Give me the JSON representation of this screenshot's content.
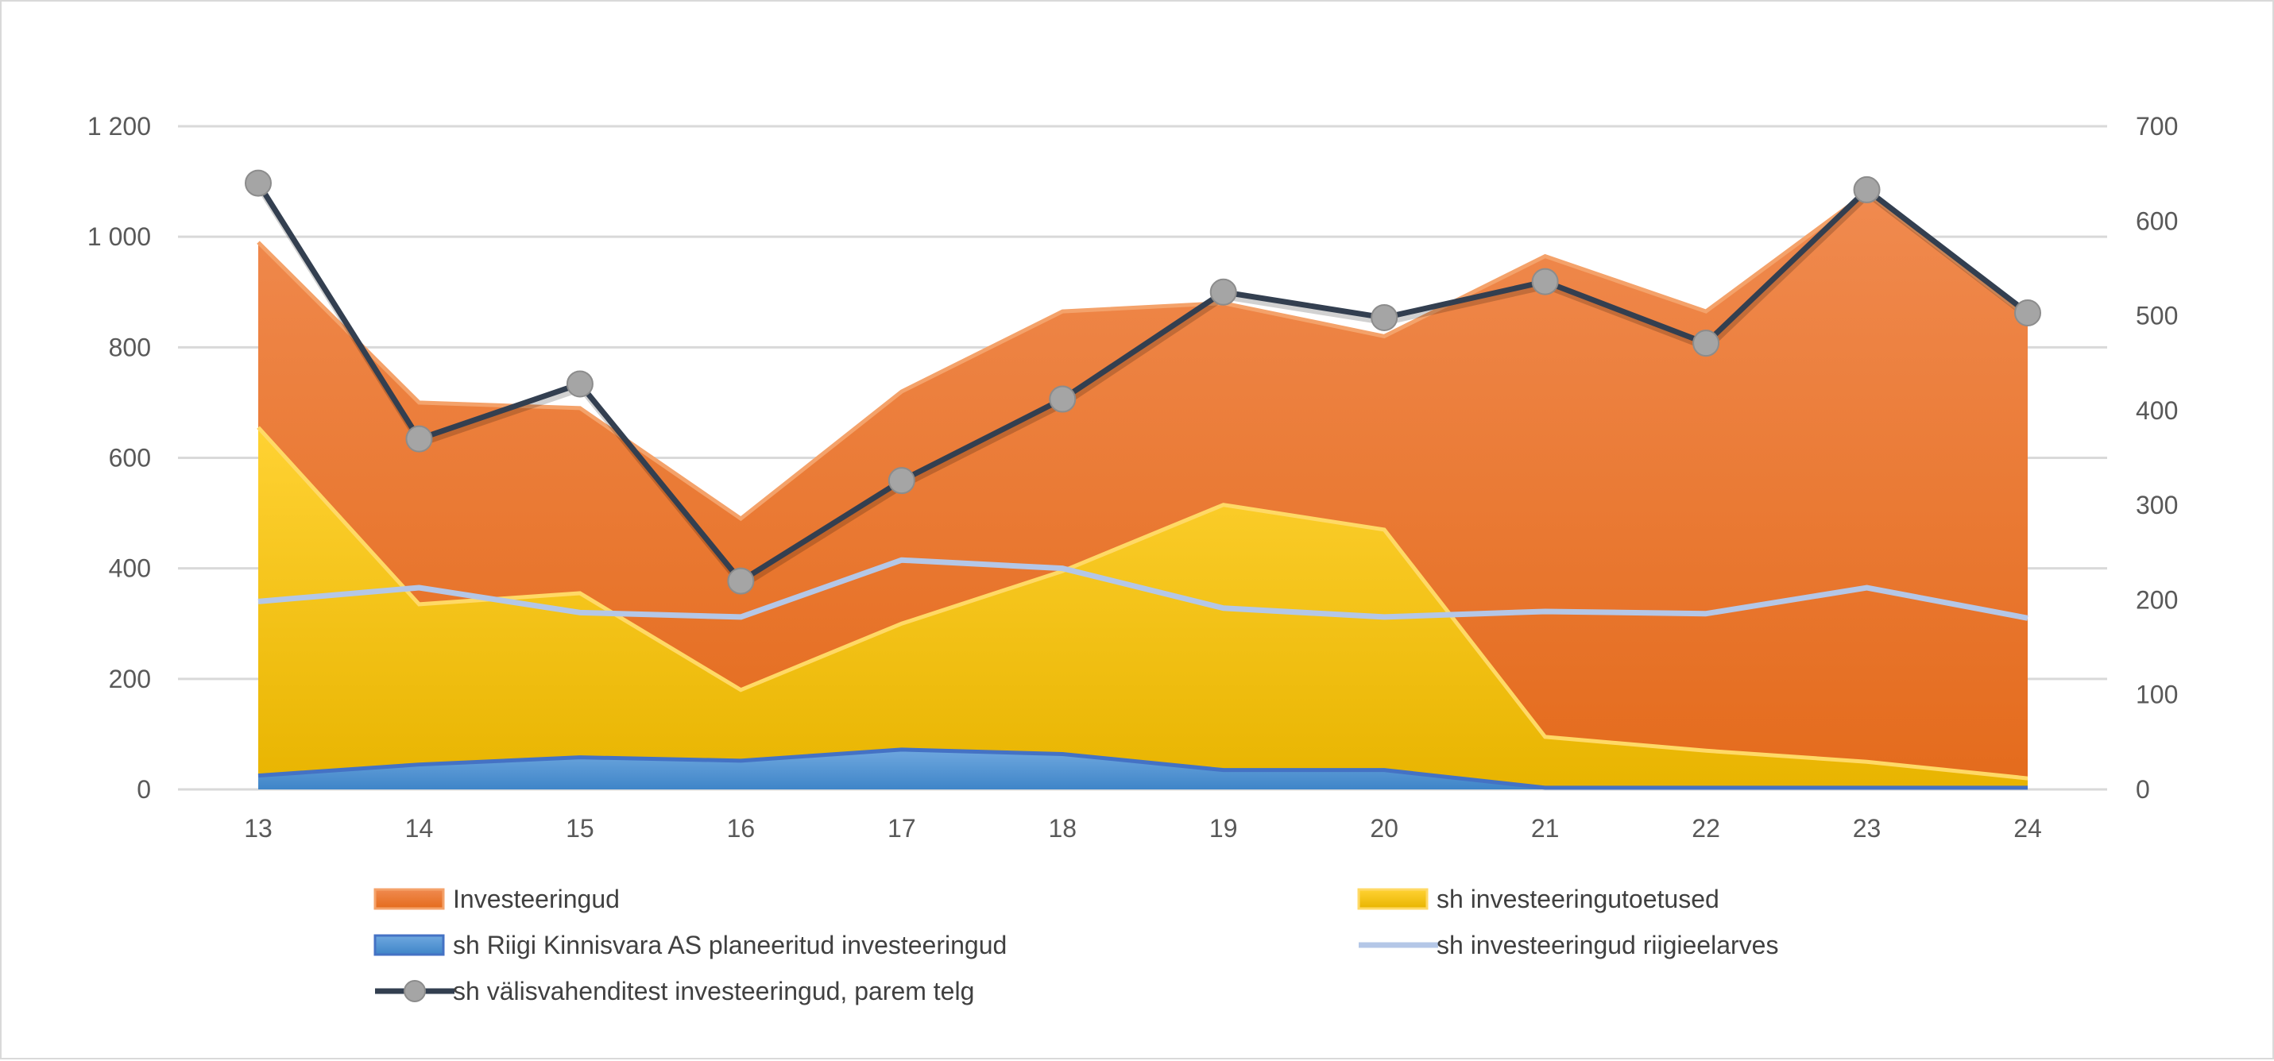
{
  "chart_data": {
    "type": "area",
    "title": "",
    "xlabel": "",
    "ylabel": "",
    "x": [
      "13",
      "14",
      "15",
      "16",
      "17",
      "18",
      "19",
      "20",
      "21",
      "22",
      "23",
      "24"
    ],
    "ylim_left": [
      0,
      1200
    ],
    "yticks_left": [
      0,
      200,
      400,
      600,
      800,
      1000,
      1200
    ],
    "ytick_labels_left": [
      "0",
      "200",
      "400",
      "600",
      "800",
      "1 000",
      "1 200"
    ],
    "ylim_right": [
      0,
      700
    ],
    "yticks_right": [
      0,
      100,
      200,
      300,
      400,
      500,
      600,
      700
    ],
    "ytick_labels_right": [
      "0",
      "100",
      "200",
      "300",
      "400",
      "500",
      "600",
      "700"
    ],
    "grid": true,
    "legend_position": "bottom",
    "series": [
      {
        "name": "Investeeringud",
        "kind": "area",
        "axis": "left",
        "color": "#ed7d31",
        "values": [
          990,
          700,
          690,
          490,
          720,
          865,
          880,
          820,
          965,
          865,
          1080,
          855
        ]
      },
      {
        "name": "sh investeeringutoetused",
        "kind": "area",
        "axis": "left",
        "color": "#ffc000",
        "values": [
          655,
          335,
          355,
          180,
          300,
          395,
          515,
          470,
          95,
          70,
          50,
          20
        ]
      },
      {
        "name": "sh Riigi Kinnisvara AS planeeritud investeeringud",
        "kind": "area",
        "axis": "left",
        "color": "#5b9bd5",
        "values": [
          25,
          45,
          58,
          52,
          72,
          64,
          35,
          35,
          3,
          3,
          3,
          3
        ]
      },
      {
        "name": "sh investeeringud riigieelarves",
        "kind": "line",
        "axis": "left",
        "color": "#b4c7e7",
        "values": [
          340,
          365,
          320,
          312,
          415,
          400,
          328,
          312,
          322,
          318,
          365,
          310
        ]
      },
      {
        "name": "sh välisvahenditest investeeringud, parem telg",
        "kind": "line-marker",
        "axis": "right",
        "color": "#333f50",
        "marker_color": "#a5a5a5",
        "values": [
          640,
          370,
          428,
          220,
          326,
          412,
          525,
          498,
          536,
          471,
          633,
          503
        ]
      }
    ]
  }
}
